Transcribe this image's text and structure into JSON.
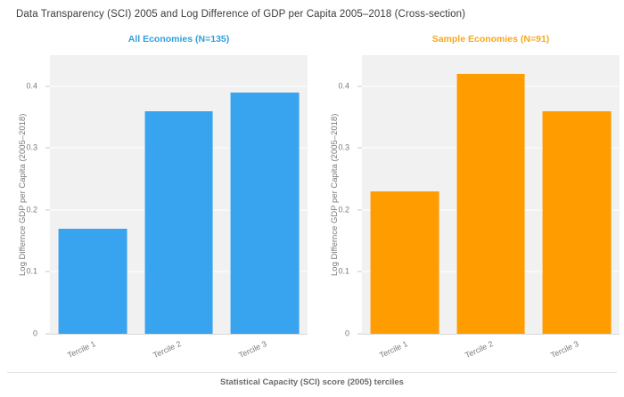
{
  "header": {
    "title": "Data Transparency (SCI) 2005 and Log Difference of GDP per Capita 2005–2018 (Cross-section)"
  },
  "footer": {
    "caption": "Statistical Capacity (SCI) score (2005) terciles"
  },
  "chart_data": [
    {
      "type": "bar",
      "title": "All Economies (N=135)",
      "title_color": "#319fdd",
      "bar_color": "#38a3ef",
      "categories": [
        "Tercile 1",
        "Tercile 2",
        "Tercile 3"
      ],
      "values": [
        0.17,
        0.36,
        0.39
      ],
      "ylabel": "Log Differnce GDP per Capita (2005–2018)",
      "xlabel": "Statistical Capacity (SCI) score (2005) terciles",
      "ylim": [
        0,
        0.45
      ],
      "yticks": [
        "0",
        "0.1",
        "0.2",
        "0.3",
        "0.4"
      ],
      "grid": true,
      "legend": "none",
      "plot_bg": "#f1f1f1"
    },
    {
      "type": "bar",
      "title": "Sample Economies (N=91)",
      "title_color": "#f7a71f",
      "bar_color": "#ff9c00",
      "categories": [
        "Tercile 1",
        "Tercile 2",
        "Tercile 3"
      ],
      "values": [
        0.23,
        0.42,
        0.36
      ],
      "ylabel": "Log Differnce GDP per Capita (2005–2018)",
      "xlabel": "Statistical Capacity (SCI) score (2005) terciles",
      "ylim": [
        0,
        0.45
      ],
      "yticks": [
        "0",
        "0.1",
        "0.2",
        "0.3",
        "0.4"
      ],
      "grid": true,
      "legend": "none",
      "plot_bg": "#f1f1f1"
    }
  ]
}
